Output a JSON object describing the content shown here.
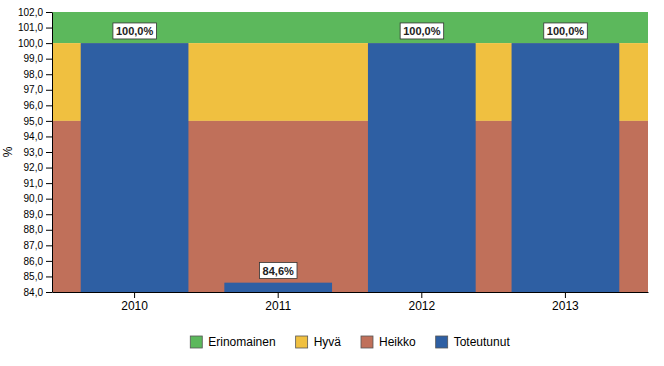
{
  "chart_data": {
    "type": "bar",
    "categories": [
      "2010",
      "2011",
      "2012",
      "2013"
    ],
    "series": [
      {
        "name": "Toteutunut",
        "color": "#2E5FA3",
        "values": [
          100.0,
          84.6,
          100.0,
          100.0
        ],
        "value_labels": [
          "100,0%",
          "84,6%",
          "100,0%",
          "100,0%"
        ]
      }
    ],
    "bands": [
      {
        "name": "Erinomainen",
        "color": "#5CB85C",
        "from": 100.0,
        "to": 102.0
      },
      {
        "name": "Hyvä",
        "color": "#F0C040",
        "from": 95.0,
        "to": 100.0
      },
      {
        "name": "Heikko",
        "color": "#C0705A",
        "from": 84.0,
        "to": 95.0
      }
    ],
    "y_label": "%",
    "ylim": [
      84.0,
      102.0
    ],
    "yticks": [
      {
        "value": 84,
        "label": "84,0"
      },
      {
        "value": 85,
        "label": "85,0"
      },
      {
        "value": 86,
        "label": "86,0"
      },
      {
        "value": 87,
        "label": "87,0"
      },
      {
        "value": 88,
        "label": "88,0"
      },
      {
        "value": 89,
        "label": "89,0"
      },
      {
        "value": 90,
        "label": "90,0"
      },
      {
        "value": 91,
        "label": "91,0"
      },
      {
        "value": 92,
        "label": "92,0"
      },
      {
        "value": 93,
        "label": "93,0"
      },
      {
        "value": 94,
        "label": "94,0"
      },
      {
        "value": 95,
        "label": "95,0"
      },
      {
        "value": 96,
        "label": "96,0"
      },
      {
        "value": 97,
        "label": "97,0"
      },
      {
        "value": 98,
        "label": "98,0"
      },
      {
        "value": 99,
        "label": "99,0"
      },
      {
        "value": 100,
        "label": "100,0"
      },
      {
        "value": 101,
        "label": "101,0"
      },
      {
        "value": 102,
        "label": "102,0"
      }
    ],
    "grid": false,
    "data_labels": true
  }
}
